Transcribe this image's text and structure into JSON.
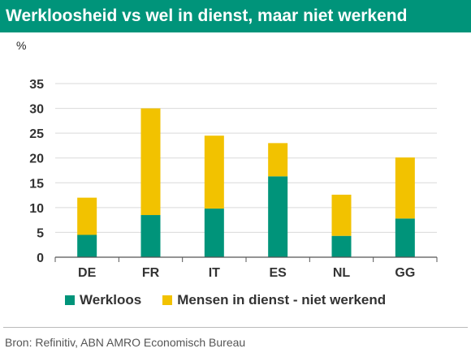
{
  "title": "Werkloosheid vs wel in dienst, maar niet werkend",
  "unit": "%",
  "source": "Bron: Refinitiv, ABN AMRO Economisch Bureau",
  "colors": {
    "title_bg": "#00947a",
    "werkloos": "#00947a",
    "in_dienst": "#f2c200"
  },
  "chart_data": {
    "type": "bar",
    "stacked": true,
    "categories": [
      "DE",
      "FR",
      "IT",
      "ES",
      "NL",
      "GG"
    ],
    "series": [
      {
        "name": "Werkloos",
        "values": [
          4.5,
          8.5,
          9.8,
          16.3,
          4.3,
          7.8
        ]
      },
      {
        "name": "Mensen in dienst - niet werkend",
        "values": [
          7.5,
          21.5,
          14.7,
          6.7,
          8.3,
          12.3
        ]
      }
    ],
    "yticks": [
      "0",
      "5",
      "10",
      "15",
      "20",
      "25",
      "30",
      "35"
    ],
    "ylim": [
      0,
      35
    ],
    "ylabel": "%",
    "grid": true,
    "legend": "bottom"
  }
}
